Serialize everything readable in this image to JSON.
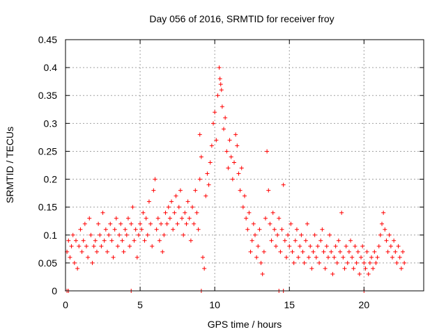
{
  "chart_data": {
    "type": "scatter",
    "title": "Day 056 of 2016, SRMTID for receiver froy",
    "xlabel": "GPS time / hours",
    "ylabel": "SRMTID / TECUs",
    "xlim": [
      0,
      24
    ],
    "ylim": [
      0,
      0.45
    ],
    "x_ticks": [
      0,
      5,
      10,
      15,
      20
    ],
    "x_tick_labels": [
      "0",
      "5",
      "10",
      "15",
      "20"
    ],
    "y_ticks": [
      0,
      0.05,
      0.1,
      0.15,
      0.2,
      0.25,
      0.3,
      0.35,
      0.4,
      0.45
    ],
    "y_tick_labels": [
      "0",
      "0.05",
      "0.1",
      "0.15",
      "0.2",
      "0.25",
      "0.3",
      "0.35",
      "0.4",
      "0.45"
    ],
    "grid": true,
    "marker": "+",
    "color": "#ff0000",
    "series": [
      {
        "name": "SRMTID",
        "points": [
          [
            0.1,
            0.0
          ],
          [
            0.2,
            0.0
          ],
          [
            4.4,
            0.0
          ],
          [
            9.1,
            0.0
          ],
          [
            14.3,
            0.0
          ],
          [
            14.6,
            0.0
          ],
          [
            20.0,
            0.0
          ],
          [
            0.1,
            0.07
          ],
          [
            0.2,
            0.09
          ],
          [
            0.3,
            0.06
          ],
          [
            0.4,
            0.08
          ],
          [
            0.5,
            0.1
          ],
          [
            0.6,
            0.05
          ],
          [
            0.7,
            0.09
          ],
          [
            0.8,
            0.04
          ],
          [
            0.9,
            0.08
          ],
          [
            1.0,
            0.11
          ],
          [
            1.1,
            0.07
          ],
          [
            1.2,
            0.09
          ],
          [
            1.3,
            0.12
          ],
          [
            1.4,
            0.08
          ],
          [
            1.5,
            0.06
          ],
          [
            1.6,
            0.13
          ],
          [
            1.7,
            0.1
          ],
          [
            1.8,
            0.05
          ],
          [
            1.9,
            0.08
          ],
          [
            2.0,
            0.09
          ],
          [
            2.1,
            0.07
          ],
          [
            2.2,
            0.12
          ],
          [
            2.3,
            0.1
          ],
          [
            2.4,
            0.08
          ],
          [
            2.5,
            0.14
          ],
          [
            2.6,
            0.09
          ],
          [
            2.7,
            0.11
          ],
          [
            2.8,
            0.07
          ],
          [
            2.9,
            0.1
          ],
          [
            3.0,
            0.12
          ],
          [
            3.1,
            0.09
          ],
          [
            3.2,
            0.06
          ],
          [
            3.3,
            0.11
          ],
          [
            3.4,
            0.13
          ],
          [
            3.5,
            0.08
          ],
          [
            3.6,
            0.1
          ],
          [
            3.7,
            0.12
          ],
          [
            3.8,
            0.09
          ],
          [
            3.9,
            0.07
          ],
          [
            4.0,
            0.11
          ],
          [
            4.1,
            0.1
          ],
          [
            4.2,
            0.13
          ],
          [
            4.3,
            0.08
          ],
          [
            4.4,
            0.12
          ],
          [
            4.5,
            0.15
          ],
          [
            4.6,
            0.09
          ],
          [
            4.7,
            0.11
          ],
          [
            4.8,
            0.06
          ],
          [
            4.9,
            0.1
          ],
          [
            5.0,
            0.12
          ],
          [
            5.1,
            0.11
          ],
          [
            5.2,
            0.14
          ],
          [
            5.3,
            0.09
          ],
          [
            5.4,
            0.13
          ],
          [
            5.5,
            0.1
          ],
          [
            5.6,
            0.16
          ],
          [
            5.7,
            0.12
          ],
          [
            5.8,
            0.08
          ],
          [
            5.9,
            0.18
          ],
          [
            6.0,
            0.2
          ],
          [
            6.1,
            0.11
          ],
          [
            6.2,
            0.13
          ],
          [
            6.3,
            0.09
          ],
          [
            6.4,
            0.12
          ],
          [
            6.5,
            0.07
          ],
          [
            6.6,
            0.1
          ],
          [
            6.7,
            0.14
          ],
          [
            6.8,
            0.12
          ],
          [
            6.9,
            0.15
          ],
          [
            7.0,
            0.13
          ],
          [
            7.1,
            0.16
          ],
          [
            7.2,
            0.11
          ],
          [
            7.3,
            0.14
          ],
          [
            7.4,
            0.17
          ],
          [
            7.5,
            0.12
          ],
          [
            7.6,
            0.15
          ],
          [
            7.7,
            0.18
          ],
          [
            7.8,
            0.13
          ],
          [
            7.9,
            0.1
          ],
          [
            8.0,
            0.14
          ],
          [
            8.1,
            0.12
          ],
          [
            8.2,
            0.16
          ],
          [
            8.3,
            0.13
          ],
          [
            8.4,
            0.09
          ],
          [
            8.5,
            0.15
          ],
          [
            8.6,
            0.12
          ],
          [
            8.7,
            0.18
          ],
          [
            8.8,
            0.14
          ],
          [
            8.9,
            0.11
          ],
          [
            9.0,
            0.2
          ],
          [
            9.0,
            0.28
          ],
          [
            9.1,
            0.24
          ],
          [
            9.2,
            0.06
          ],
          [
            9.3,
            0.04
          ],
          [
            9.4,
            0.17
          ],
          [
            9.5,
            0.21
          ],
          [
            9.6,
            0.19
          ],
          [
            9.7,
            0.23
          ],
          [
            9.8,
            0.26
          ],
          [
            9.9,
            0.3
          ],
          [
            10.0,
            0.32
          ],
          [
            10.1,
            0.27
          ],
          [
            10.2,
            0.35
          ],
          [
            10.3,
            0.4
          ],
          [
            10.35,
            0.38
          ],
          [
            10.4,
            0.37
          ],
          [
            10.45,
            0.36
          ],
          [
            10.5,
            0.33
          ],
          [
            10.6,
            0.29
          ],
          [
            10.7,
            0.31
          ],
          [
            10.8,
            0.25
          ],
          [
            10.9,
            0.22
          ],
          [
            11.0,
            0.27
          ],
          [
            11.1,
            0.24
          ],
          [
            11.2,
            0.2
          ],
          [
            11.3,
            0.23
          ],
          [
            11.4,
            0.28
          ],
          [
            11.5,
            0.26
          ],
          [
            11.6,
            0.21
          ],
          [
            11.7,
            0.18
          ],
          [
            11.8,
            0.22
          ],
          [
            11.9,
            0.15
          ],
          [
            12.0,
            0.17
          ],
          [
            12.1,
            0.13
          ],
          [
            12.2,
            0.11
          ],
          [
            12.3,
            0.14
          ],
          [
            12.4,
            0.07
          ],
          [
            12.5,
            0.09
          ],
          [
            12.6,
            0.12
          ],
          [
            12.7,
            0.1
          ],
          [
            12.8,
            0.06
          ],
          [
            12.9,
            0.08
          ],
          [
            13.0,
            0.11
          ],
          [
            13.1,
            0.05
          ],
          [
            13.2,
            0.03
          ],
          [
            13.3,
            0.07
          ],
          [
            13.4,
            0.13
          ],
          [
            13.5,
            0.25
          ],
          [
            13.6,
            0.18
          ],
          [
            13.7,
            0.12
          ],
          [
            13.8,
            0.09
          ],
          [
            13.9,
            0.14
          ],
          [
            14.0,
            0.11
          ],
          [
            14.1,
            0.08
          ],
          [
            14.2,
            0.1
          ],
          [
            14.3,
            0.13
          ],
          [
            14.4,
            0.07
          ],
          [
            14.5,
            0.11
          ],
          [
            14.6,
            0.19
          ],
          [
            14.7,
            0.09
          ],
          [
            14.8,
            0.06
          ],
          [
            14.9,
            0.1
          ],
          [
            15.0,
            0.08
          ],
          [
            15.1,
            0.12
          ],
          [
            15.2,
            0.07
          ],
          [
            15.3,
            0.05
          ],
          [
            15.4,
            0.09
          ],
          [
            15.5,
            0.11
          ],
          [
            15.6,
            0.06
          ],
          [
            15.7,
            0.08
          ],
          [
            15.8,
            0.1
          ],
          [
            15.9,
            0.07
          ],
          [
            16.0,
            0.05
          ],
          [
            16.1,
            0.09
          ],
          [
            16.2,
            0.12
          ],
          [
            16.3,
            0.06
          ],
          [
            16.4,
            0.08
          ],
          [
            16.5,
            0.04
          ],
          [
            16.6,
            0.07
          ],
          [
            16.7,
            0.1
          ],
          [
            16.8,
            0.06
          ],
          [
            16.9,
            0.08
          ],
          [
            17.0,
            0.05
          ],
          [
            17.1,
            0.09
          ],
          [
            17.2,
            0.11
          ],
          [
            17.3,
            0.07
          ],
          [
            17.4,
            0.04
          ],
          [
            17.5,
            0.08
          ],
          [
            17.6,
            0.06
          ],
          [
            17.7,
            0.1
          ],
          [
            17.8,
            0.07
          ],
          [
            17.9,
            0.03
          ],
          [
            18.0,
            0.06
          ],
          [
            18.1,
            0.08
          ],
          [
            18.2,
            0.05
          ],
          [
            18.3,
            0.09
          ],
          [
            18.4,
            0.07
          ],
          [
            18.5,
            0.14
          ],
          [
            18.6,
            0.06
          ],
          [
            18.7,
            0.04
          ],
          [
            18.8,
            0.08
          ],
          [
            18.9,
            0.05
          ],
          [
            19.0,
            0.07
          ],
          [
            19.1,
            0.09
          ],
          [
            19.2,
            0.06
          ],
          [
            19.3,
            0.04
          ],
          [
            19.4,
            0.08
          ],
          [
            19.5,
            0.05
          ],
          [
            19.6,
            0.07
          ],
          [
            19.7,
            0.03
          ],
          [
            19.8,
            0.06
          ],
          [
            19.9,
            0.08
          ],
          [
            20.0,
            0.05
          ],
          [
            20.1,
            0.04
          ],
          [
            20.2,
            0.07
          ],
          [
            20.3,
            0.03
          ],
          [
            20.4,
            0.05
          ],
          [
            20.5,
            0.06
          ],
          [
            20.6,
            0.04
          ],
          [
            20.7,
            0.07
          ],
          [
            20.8,
            0.05
          ],
          [
            20.9,
            0.06
          ],
          [
            21.0,
            0.08
          ],
          [
            21.1,
            0.1
          ],
          [
            21.2,
            0.12
          ],
          [
            21.3,
            0.14
          ],
          [
            21.4,
            0.11
          ],
          [
            21.5,
            0.09
          ],
          [
            21.6,
            0.07
          ],
          [
            21.7,
            0.1
          ],
          [
            21.8,
            0.08
          ],
          [
            21.9,
            0.06
          ],
          [
            22.0,
            0.09
          ],
          [
            22.1,
            0.07
          ],
          [
            22.2,
            0.05
          ],
          [
            22.3,
            0.08
          ],
          [
            22.4,
            0.06
          ],
          [
            22.5,
            0.04
          ],
          [
            22.6,
            0.07
          ],
          [
            22.7,
            0.05
          ]
        ]
      }
    ]
  }
}
